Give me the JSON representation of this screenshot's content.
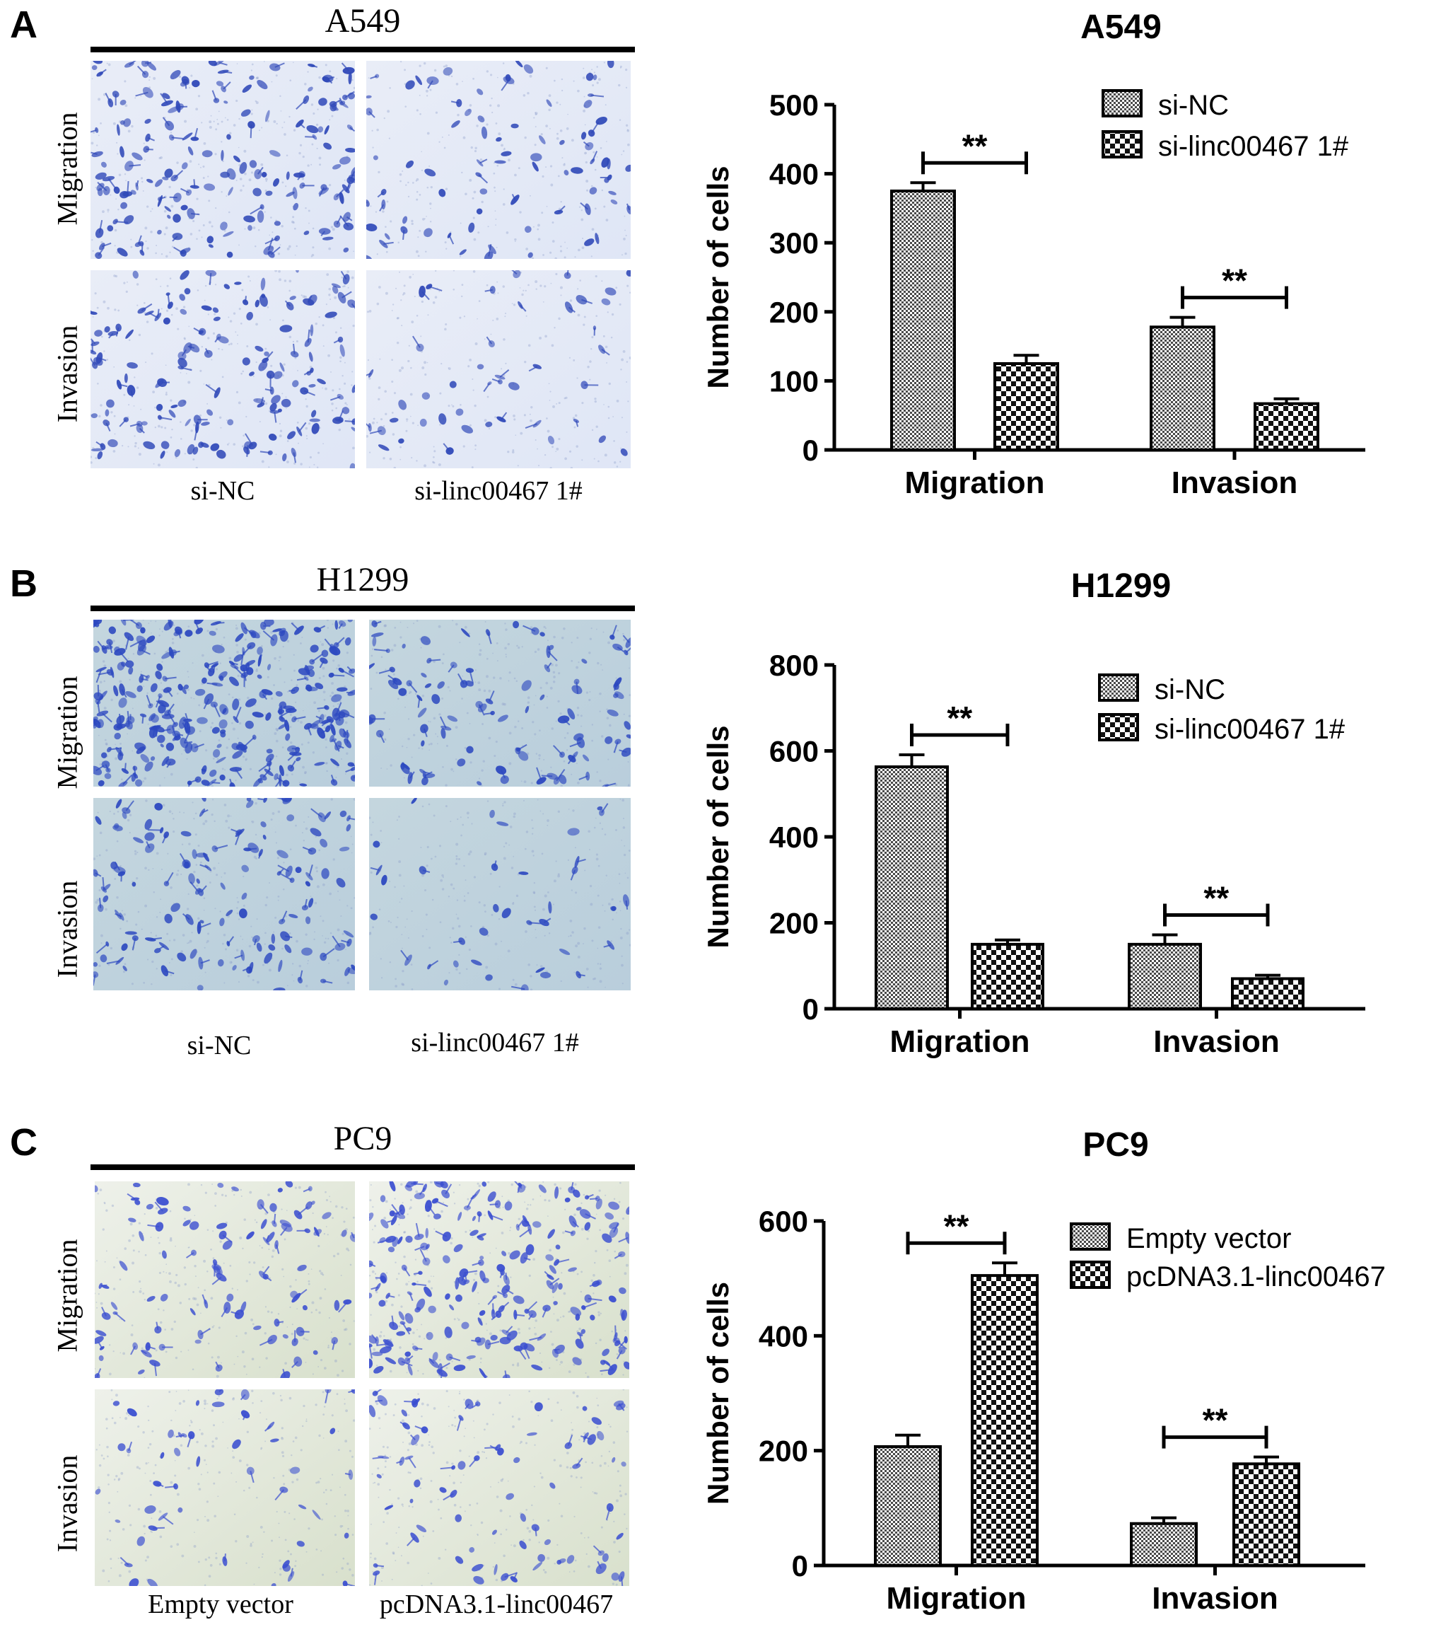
{
  "figure": {
    "panels": [
      {
        "letter": "A",
        "cell_line": "A549",
        "row_labels": [
          "Migration",
          "Invasion"
        ],
        "col_labels": [
          "si-NC",
          "si-linc00467 1#"
        ],
        "colors": {
          "bg_a": "#dfe6f6",
          "bg_b": "#e9edf7",
          "cell": "#2f48b8"
        }
      },
      {
        "letter": "B",
        "cell_line": "H1299",
        "row_labels": [
          "Migration",
          "Invasion"
        ],
        "col_labels": [
          "si-NC",
          "si-linc00467 1#"
        ],
        "colors": {
          "bg_a": "#b9cedc",
          "bg_b": "#c4d6de",
          "cell": "#2c48c0"
        }
      },
      {
        "letter": "C",
        "cell_line": "PC9",
        "row_labels": [
          "Migration",
          "Invasion"
        ],
        "col_labels": [
          "Empty vector",
          "pcDNA3.1-linc00467"
        ],
        "colors": {
          "bg_a": "#d8e0cc",
          "bg_b": "#eef1ea",
          "cell": "#3a4ed0"
        }
      }
    ]
  },
  "chart_data": [
    {
      "type": "bar",
      "title": "A549",
      "ylabel": "Number of cells",
      "categories": [
        "Migration",
        "Invasion"
      ],
      "series": [
        {
          "name": "si-NC",
          "values": [
            375,
            178
          ],
          "errors": [
            12,
            14
          ]
        },
        {
          "name": "si-linc00467 1#",
          "values": [
            125,
            67
          ],
          "errors": [
            12,
            7
          ]
        }
      ],
      "ylim": [
        0,
        500
      ],
      "yticks": [
        0,
        100,
        200,
        300,
        400,
        500
      ],
      "significance": [
        "**",
        "**"
      ],
      "legend_position": "top-right",
      "grid": false
    },
    {
      "type": "bar",
      "title": "H1299",
      "ylabel": "Number of cells",
      "categories": [
        "Migration",
        "Invasion"
      ],
      "series": [
        {
          "name": "si-NC",
          "values": [
            563,
            150
          ],
          "errors": [
            28,
            22
          ]
        },
        {
          "name": "si-linc00467 1#",
          "values": [
            150,
            70
          ],
          "errors": [
            10,
            8
          ]
        }
      ],
      "ylim": [
        0,
        800
      ],
      "yticks": [
        0,
        200,
        400,
        600,
        800
      ],
      "significance": [
        "**",
        "**"
      ],
      "legend_position": "top-right",
      "grid": false
    },
    {
      "type": "bar",
      "title": "PC9",
      "ylabel": "Number of cells",
      "categories": [
        "Migration",
        "Invasion"
      ],
      "series": [
        {
          "name": "Empty vector",
          "values": [
            207,
            73
          ],
          "errors": [
            20,
            10
          ]
        },
        {
          "name": "pcDNA3.1-linc00467",
          "values": [
            505,
            177
          ],
          "errors": [
            22,
            12
          ]
        }
      ],
      "ylim": [
        0,
        600
      ],
      "yticks": [
        0,
        200,
        400,
        600
      ],
      "significance": [
        "**",
        "**"
      ],
      "legend_position": "top-right",
      "grid": false
    }
  ]
}
